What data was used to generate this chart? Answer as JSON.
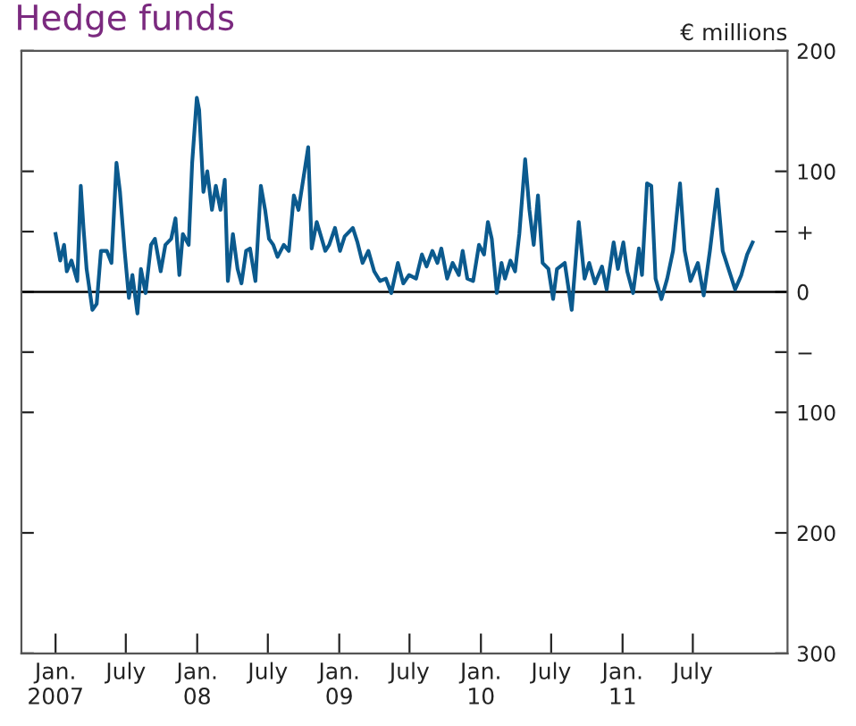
{
  "chart_data": {
    "type": "line",
    "title": "Hedge funds",
    "ylabel": "€ millions",
    "x": [
      "2007-01-01",
      "2007-01-13",
      "2007-01-23",
      "2007-01-30",
      "2007-02-11",
      "2007-02-26",
      "2007-03-07",
      "2007-03-14",
      "2007-03-22",
      "2007-04-06",
      "2007-04-17",
      "2007-04-28",
      "2007-05-13",
      "2007-05-25",
      "2007-06-07",
      "2007-06-16",
      "2007-06-28",
      "2007-07-09",
      "2007-07-18",
      "2007-07-31",
      "2007-08-09",
      "2007-08-21",
      "2007-09-04",
      "2007-09-14",
      "2007-09-29",
      "2007-10-11",
      "2007-10-26",
      "2007-11-06",
      "2007-11-16",
      "2007-11-25",
      "2007-12-10",
      "2007-12-19",
      "2007-12-31",
      "2008-01-06",
      "2008-01-17",
      "2008-01-27",
      "2008-02-08",
      "2008-02-18",
      "2008-03-01",
      "2008-03-12",
      "2008-03-20",
      "2008-04-02",
      "2008-04-14",
      "2008-04-24",
      "2008-05-06",
      "2008-05-16",
      "2008-05-30",
      "2008-06-13",
      "2008-06-24",
      "2008-07-04",
      "2008-07-15",
      "2008-07-26",
      "2008-08-11",
      "2008-08-24",
      "2008-09-06",
      "2008-09-18",
      "2008-10-13",
      "2008-10-22",
      "2008-11-04",
      "2008-11-15",
      "2008-11-26",
      "2008-12-06",
      "2008-12-21",
      "2009-01-03",
      "2009-01-15",
      "2009-02-05",
      "2009-02-17",
      "2009-03-02",
      "2009-03-17",
      "2009-04-01",
      "2009-04-16",
      "2009-05-01",
      "2009-05-15",
      "2009-06-01",
      "2009-06-15",
      "2009-06-30",
      "2009-07-18",
      "2009-08-02",
      "2009-08-14",
      "2009-08-29",
      "2009-09-11",
      "2009-09-21",
      "2009-10-06",
      "2009-10-20",
      "2009-11-05",
      "2009-11-15",
      "2009-11-27",
      "2009-12-12",
      "2009-12-27",
      "2010-01-09",
      "2010-01-19",
      "2010-01-29",
      "2010-02-11",
      "2010-02-23",
      "2010-03-04",
      "2010-03-18",
      "2010-03-30",
      "2010-04-10",
      "2010-04-25",
      "2010-05-06",
      "2010-05-17",
      "2010-05-28",
      "2010-06-09",
      "2010-06-24",
      "2010-07-06",
      "2010-07-16",
      "2010-08-05",
      "2010-08-23",
      "2010-09-10",
      "2010-09-25",
      "2010-10-07",
      "2010-10-22",
      "2010-11-09",
      "2010-11-21",
      "2010-12-09",
      "2010-12-20",
      "2011-01-03",
      "2011-01-13",
      "2011-01-28",
      "2011-02-12",
      "2011-02-20",
      "2011-03-05",
      "2011-03-16",
      "2011-03-27",
      "2011-04-11",
      "2011-04-26",
      "2011-05-11",
      "2011-05-29",
      "2011-06-10",
      "2011-06-25",
      "2011-07-14",
      "2011-07-29",
      "2011-08-14",
      "2011-09-02",
      "2011-09-16",
      "2011-10-01",
      "2011-10-18",
      "2011-11-03",
      "2011-11-18",
      "2011-12-02"
    ],
    "series": [
      {
        "color": "#0b5a8e",
        "values": [
          48,
          26,
          39,
          17,
          26,
          9,
          88,
          53,
          19,
          -15,
          -10,
          34,
          34,
          24,
          107,
          83,
          34,
          -5,
          14,
          -18,
          19,
          -1,
          39,
          44,
          17,
          39,
          44,
          61,
          14,
          48,
          39,
          107,
          161,
          151,
          83,
          100,
          68,
          88,
          68,
          93,
          9,
          48,
          19,
          7,
          34,
          36,
          9,
          88,
          68,
          44,
          39,
          29,
          39,
          34,
          80,
          68,
          120,
          36,
          58,
          46,
          34,
          39,
          53,
          34,
          46,
          53,
          41,
          24,
          34,
          17,
          9,
          11,
          -1,
          24,
          7,
          14,
          11,
          31,
          21,
          34,
          24,
          36,
          11,
          24,
          14,
          34,
          11,
          9,
          39,
          31,
          58,
          44,
          -1,
          24,
          11,
          26,
          17,
          48,
          110,
          68,
          39,
          80,
          24,
          19,
          -6,
          19,
          24,
          -15,
          58,
          11,
          24,
          7,
          21,
          2,
          41,
          19,
          41,
          17,
          -1,
          36,
          14,
          90,
          88,
          11,
          -6,
          11,
          34,
          90,
          34,
          9,
          24,
          -3,
          34,
          85,
          34,
          19,
          2,
          14,
          31,
          41
        ]
      }
    ],
    "xlim": [
      "2006-10-05",
      "2012-03-01"
    ],
    "xticks": [
      {
        "value": "2007-01-01",
        "label": "Jan.\n2007"
      },
      {
        "value": "2007-07-01",
        "label": "July"
      },
      {
        "value": "2008-01-01",
        "label": "Jan.\n08"
      },
      {
        "value": "2008-07-01",
        "label": "July"
      },
      {
        "value": "2009-01-01",
        "label": "Jan.\n09"
      },
      {
        "value": "2009-07-01",
        "label": "July"
      },
      {
        "value": "2010-01-01",
        "label": "Jan.\n10"
      },
      {
        "value": "2010-07-01",
        "label": "July"
      },
      {
        "value": "2011-01-01",
        "label": "Jan.\n11"
      },
      {
        "value": "2011-07-01",
        "label": "July"
      }
    ],
    "ylim": [
      -300,
      200
    ],
    "yticks": [
      200,
      100,
      {
        "value": 50,
        "label": "+"
      },
      0,
      {
        "value": -50,
        "label": "−"
      },
      {
        "value": -100,
        "label": "100"
      },
      {
        "value": -200,
        "label": "200"
      },
      {
        "value": -300,
        "label": "300"
      }
    ],
    "ref_lines": [
      {
        "axis": "y",
        "value": 0,
        "color": "#000000"
      }
    ],
    "grid": false,
    "legend": false,
    "line_style": "solid",
    "marker": "none"
  }
}
